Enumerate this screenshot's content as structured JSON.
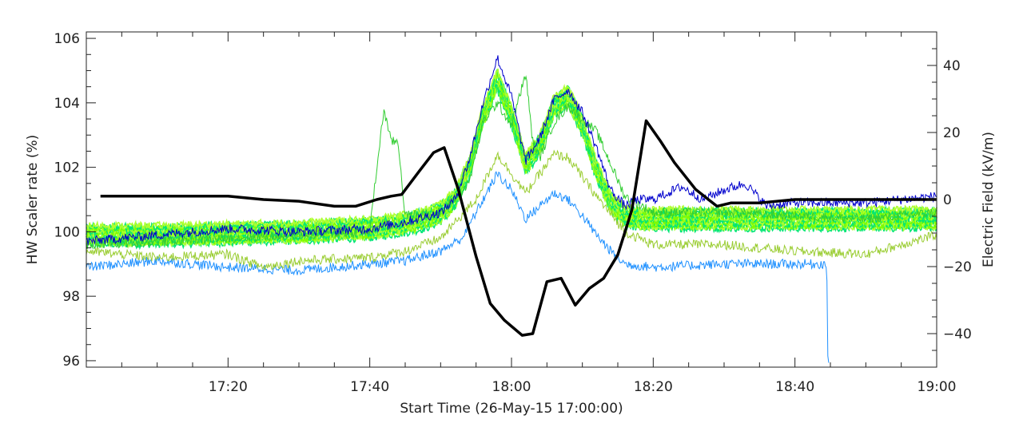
{
  "chart_data": {
    "type": "line",
    "xlabel": "Start Time (26-May-15 17:00:00)",
    "ylabel": "HW Scaler rate (%)",
    "y2label": "Electric Field (kV/m)",
    "xlim": [
      0,
      120
    ],
    "ylim": [
      95.8,
      106.2
    ],
    "y2lim": [
      -50,
      50
    ],
    "x_ticks": [
      {
        "value": 20,
        "label": "17:20"
      },
      {
        "value": 40,
        "label": "17:40"
      },
      {
        "value": 60,
        "label": "18:00"
      },
      {
        "value": 80,
        "label": "18:20"
      },
      {
        "value": 100,
        "label": "18:40"
      },
      {
        "value": 120,
        "label": "19:00"
      }
    ],
    "y_ticks": [
      96,
      98,
      100,
      102,
      104,
      106
    ],
    "y2_ticks": [
      -40,
      -20,
      0,
      20,
      40
    ],
    "grid": false,
    "series": [
      {
        "axis": "y2",
        "color": "#000000",
        "x": [
          2,
          10,
          20,
          25,
          30,
          35,
          38,
          41,
          43,
          44.5,
          47,
          49,
          50.5,
          52.5,
          55,
          57,
          59,
          61.5,
          63,
          65,
          67,
          69,
          71,
          73,
          75,
          77,
          79,
          81,
          83,
          86,
          89,
          91,
          95,
          100,
          110,
          120
        ],
        "values": [
          1,
          1,
          1,
          0,
          -0.5,
          -2,
          -2,
          0,
          1,
          1.5,
          8.5,
          14,
          15.5,
          3,
          -17,
          -31,
          -36,
          -40.5,
          -40,
          -24.5,
          -23.5,
          -31.5,
          -26.5,
          -23.5,
          -16.5,
          -3,
          23.5,
          17.5,
          11,
          3,
          -2,
          -1,
          -1,
          0,
          0,
          0
        ]
      },
      {
        "axis": "y",
        "color": "#7cfc00",
        "band": true,
        "x": [
          0,
          10,
          20,
          30,
          40,
          45,
          48,
          50,
          52,
          54,
          56,
          58,
          60,
          62,
          64,
          66,
          68,
          70,
          72,
          74,
          76,
          78,
          80,
          85,
          90,
          100,
          110,
          120
        ],
        "values": [
          99.9,
          99.9,
          99.95,
          100,
          100.1,
          100.25,
          100.4,
          100.6,
          101.0,
          102.0,
          103.6,
          104.7,
          103.6,
          102.1,
          102.7,
          103.9,
          104.2,
          103.3,
          101.9,
          100.9,
          100.5,
          100.4,
          100.4,
          100.4,
          100.4,
          100.4,
          100.4,
          100.4
        ]
      },
      {
        "axis": "y",
        "color": "#1e90ff",
        "x": [
          0,
          10,
          20,
          30,
          40,
          45,
          50,
          53,
          55,
          57,
          58,
          60,
          62,
          64,
          66,
          68,
          70,
          72,
          74,
          76,
          80,
          90,
          100,
          104.5,
          104.6,
          104.8
        ],
        "values": [
          98.9,
          99.1,
          98.9,
          98.8,
          99.0,
          99.1,
          99.4,
          99.8,
          100.6,
          101.4,
          101.8,
          101.3,
          100.4,
          100.8,
          101.2,
          101.0,
          100.5,
          99.9,
          99.4,
          99.0,
          98.9,
          99.0,
          99.0,
          99.0,
          96.0,
          96.0
        ]
      },
      {
        "axis": "y",
        "color": "#9acd32",
        "x": [
          0,
          10,
          20,
          25,
          30,
          40,
          45,
          50,
          55,
          58,
          60,
          62,
          64,
          66,
          68,
          72,
          76,
          80,
          90,
          100,
          110,
          120
        ],
        "values": [
          99.4,
          99.2,
          99.3,
          98.9,
          99.1,
          99.2,
          99.4,
          99.8,
          101.0,
          102.4,
          101.8,
          101.2,
          101.8,
          102.4,
          102.3,
          101.1,
          100.0,
          99.6,
          99.6,
          99.4,
          99.3,
          99.9
        ]
      },
      {
        "axis": "y",
        "color": "#32cd32",
        "x": [
          0,
          10,
          20,
          30,
          40,
          41,
          42,
          43,
          44,
          45,
          50,
          54,
          56,
          58,
          60,
          61,
          62,
          63,
          64,
          66,
          68,
          72,
          76,
          80,
          90,
          100,
          110,
          120
        ],
        "values": [
          99.6,
          99.7,
          99.8,
          99.9,
          100.0,
          102.0,
          103.8,
          102.8,
          102.8,
          100.5,
          100.6,
          101.5,
          103.4,
          104.0,
          103.3,
          104.1,
          104.9,
          102.8,
          102.3,
          103.4,
          103.9,
          103.1,
          101.1,
          100.6,
          100.6,
          100.5,
          100.4,
          100.6
        ]
      },
      {
        "axis": "y",
        "color": "#0000cd",
        "x": [
          0,
          10,
          20,
          30,
          40,
          45,
          50,
          52,
          54,
          56,
          58,
          60,
          62,
          64,
          66,
          68,
          70,
          72,
          74,
          76,
          78,
          80,
          84,
          87,
          90,
          93,
          96,
          100,
          110,
          120
        ],
        "values": [
          99.7,
          99.9,
          100.1,
          100.0,
          100.1,
          100.3,
          100.6,
          101.0,
          102.2,
          104.0,
          105.4,
          104.2,
          102.2,
          102.9,
          104.1,
          104.4,
          103.7,
          102.6,
          101.3,
          100.8,
          101.0,
          101.0,
          101.4,
          101.0,
          101.3,
          101.5,
          100.8,
          100.9,
          100.9,
          101.1
        ]
      }
    ]
  }
}
